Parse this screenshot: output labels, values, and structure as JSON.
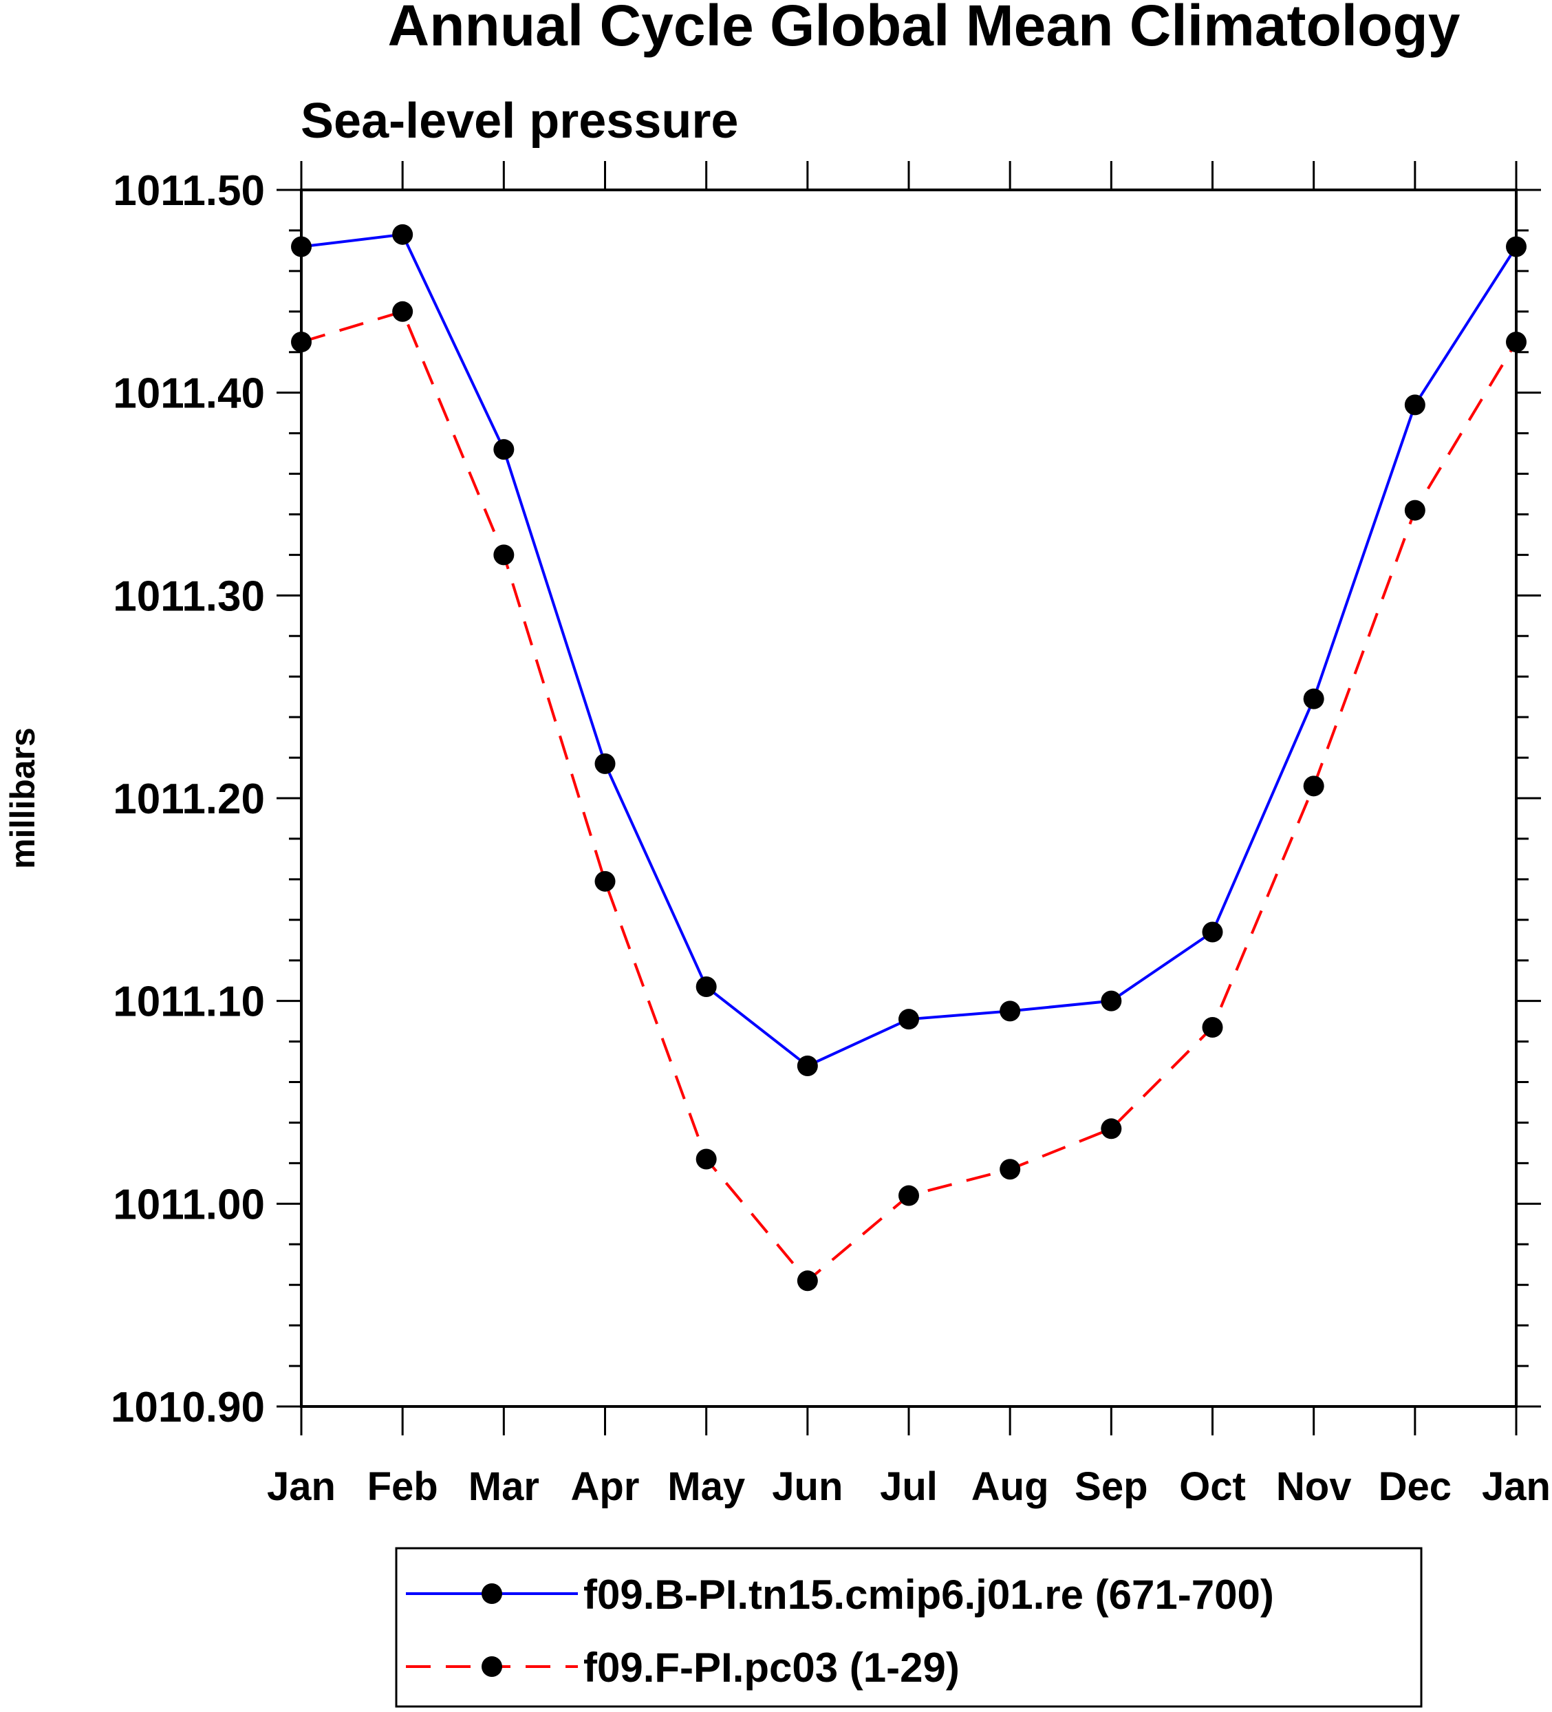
{
  "chart_data": {
    "type": "line",
    "title": "Annual Cycle Global Mean Climatology",
    "subtitle": "Sea-level pressure",
    "ylabel": "millibars",
    "xlabel": "",
    "categories": [
      "Jan",
      "Feb",
      "Mar",
      "Apr",
      "May",
      "Jun",
      "Jul",
      "Aug",
      "Sep",
      "Oct",
      "Nov",
      "Dec",
      "Jan"
    ],
    "ylim": [
      1010.9,
      1011.5
    ],
    "yticks": [
      "1011.50",
      "1011.40",
      "1011.30",
      "1011.20",
      "1011.10",
      "1011.00",
      "1010.90"
    ],
    "series": [
      {
        "name": "f09.B-PI.tn15.cmip6.j01.re (671-700)",
        "color": "#0000ff",
        "dash": "solid",
        "values": [
          1011.472,
          1011.478,
          1011.372,
          1011.217,
          1011.107,
          1011.068,
          1011.091,
          1011.095,
          1011.1,
          1011.134,
          1011.249,
          1011.394,
          1011.472
        ]
      },
      {
        "name": "f09.F-PI.pc03 (1-29)",
        "color": "#ff0000",
        "dash": "dashed",
        "values": [
          1011.425,
          1011.44,
          1011.32,
          1011.159,
          1011.022,
          1010.962,
          1011.004,
          1011.017,
          1011.037,
          1011.087,
          1011.206,
          1011.342,
          1011.425
        ]
      }
    ],
    "marker": "filled-circle",
    "legend_position": "bottom"
  }
}
